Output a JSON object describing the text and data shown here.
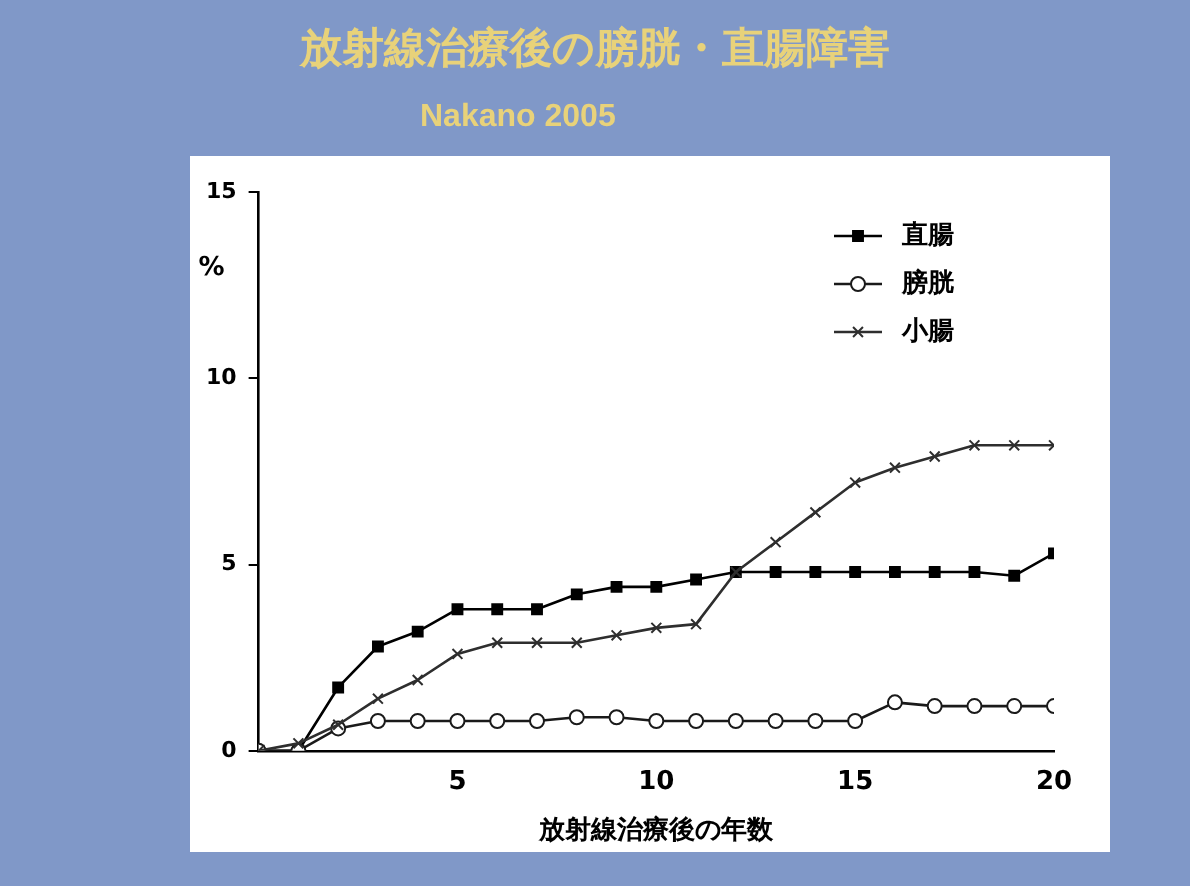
{
  "chart_data": {
    "type": "line",
    "title": "放射線治療後の膀胱・直腸障害",
    "subtitle": "Nakano 2005",
    "xlabel": "放射線治療後の年数",
    "ylabel": "%",
    "x": [
      0,
      1,
      2,
      3,
      4,
      5,
      6,
      7,
      8,
      9,
      10,
      11,
      12,
      13,
      14,
      15,
      16,
      17,
      18,
      19,
      20
    ],
    "series": [
      {
        "name": "直腸",
        "color": "#000000",
        "marker": "square",
        "values": [
          0,
          0,
          1.7,
          2.8,
          3.2,
          3.8,
          3.8,
          3.8,
          4.2,
          4.4,
          4.4,
          4.6,
          4.8,
          4.8,
          4.8,
          4.8,
          4.8,
          4.8,
          4.8,
          4.7,
          5.3
        ]
      },
      {
        "name": "膀胱",
        "color": "#1a1a1a",
        "marker": "circle",
        "values": [
          0,
          0,
          0.6,
          0.8,
          0.8,
          0.8,
          0.8,
          0.8,
          0.9,
          0.9,
          0.8,
          0.8,
          0.8,
          0.8,
          0.8,
          0.8,
          1.3,
          1.2,
          1.2,
          1.2,
          1.2
        ]
      },
      {
        "name": "小腸",
        "color": "#2e2e2e",
        "marker": "cross",
        "values": [
          0,
          0.2,
          0.7,
          1.4,
          1.9,
          2.6,
          2.9,
          2.9,
          2.9,
          3.1,
          3.3,
          3.4,
          4.8,
          5.6,
          6.4,
          7.2,
          7.6,
          7.9,
          8.2,
          8.2,
          8.2
        ]
      }
    ],
    "xlim": [
      0,
      20
    ],
    "xticks": [
      5,
      10,
      15,
      20
    ],
    "ylim": [
      0,
      15
    ],
    "yticks": [
      0,
      5,
      10,
      15
    ],
    "grid": false,
    "legend": "top right",
    "line_style": "solid"
  }
}
